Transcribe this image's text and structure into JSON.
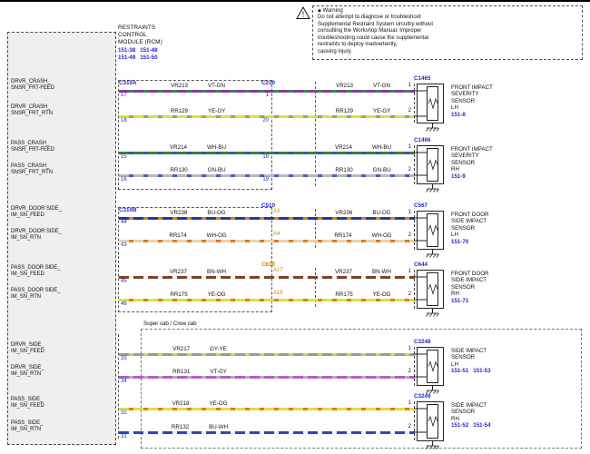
{
  "page": {
    "warning": {
      "marker": "◆",
      "title": "Warning",
      "lines": [
        "Do not attempt to diagnose or troubleshoot",
        "Supplemental Restraint System circuitry without",
        "consulting the Workshop Manual. Improper",
        "troubleshooting could cause the supplemental",
        "restraints to deploy inadvertently,",
        "causing injury."
      ]
    },
    "rcm": {
      "title_lines": [
        "RESTRAINTS",
        "CONTROL",
        "MODULE (RCM)"
      ],
      "refs": [
        "151-38",
        "151-48",
        "151-49",
        "151-50"
      ]
    },
    "supercab_label": "Super cab / Crew cab"
  },
  "colors": {
    "link_blue": "#2424c8",
    "amber": "#c9820e",
    "dash": "#555555"
  },
  "groups": [
    {
      "rcm_connector": "C310A",
      "mid": {
        "label": "C210",
        "label_color": "blue",
        "pin_style": "blue"
      },
      "sensor": {
        "connector": "C1465",
        "name_lines": [
          "FRONT IMPACT",
          "SEVERITY",
          "SENSOR"
        ],
        "side": "LH",
        "refs": [
          "151-8"
        ]
      },
      "rows": [
        {
          "signal_lines": [
            "DRVR_CRASH_",
            "SNSR_FRT-FEED"
          ],
          "rcm_pin": "17",
          "mid_pin": "1",
          "wire_id": "VR213",
          "wire_code": "VT-GN",
          "wire_base": "#8b3a9e",
          "wire_stripe": "#2f8f4f",
          "sensor_pin": "1"
        },
        {
          "signal_lines": [
            "DRVR_CRASH_",
            "SNSR_FRT_RTN"
          ],
          "rcm_pin": "18",
          "mid_pin": "20",
          "wire_id": "RR129",
          "wire_code": "YE-GY",
          "wire_base": "#e3de3a",
          "wire_stripe": "#9a9a9a",
          "sensor_pin": "2"
        }
      ]
    },
    {
      "rcm_connector": "",
      "mid": {
        "label": "",
        "label_color": "blue",
        "pin_style": "blue"
      },
      "sensor": {
        "connector": "C1466",
        "name_lines": [
          "FRONT IMPACT",
          "SEVERITY",
          "SENSOR"
        ],
        "side": "RH",
        "refs": [
          "151-9"
        ]
      },
      "rows": [
        {
          "signal_lines": [
            "PASS_CRASH_",
            "SNSR_FRT-FEED"
          ],
          "rcm_pin": "15",
          "mid_pin": "18",
          "wire_id": "VR214",
          "wire_code": "WH-BU",
          "wire_base": "#417a3f",
          "wire_stripe": "#3056b5",
          "sensor_pin": "1"
        },
        {
          "signal_lines": [
            "PASS_CRASH_",
            "SNSR_FRT_RTN"
          ],
          "rcm_pin": "16",
          "mid_pin": "19",
          "wire_id": "RR130",
          "wire_code": "GN-BU",
          "wire_base": "#b9b9b9",
          "wire_stripe": "#3f62c9",
          "sensor_pin": "2"
        }
      ]
    },
    {
      "rcm_connector": "C310B",
      "mid": {
        "label": "C510",
        "label_color": "blue",
        "pin_style": "amber"
      },
      "sensor": {
        "connector": "C567",
        "name_lines": [
          "FRONT DOOR",
          "SIDE IMPACT",
          "SENSOR"
        ],
        "side": "LH",
        "refs": [
          "151-70"
        ]
      },
      "rows": [
        {
          "signal_lines": [
            "DRVR_DOOR SIDE_",
            "IM_SN_FEED"
          ],
          "rcm_pin": "44",
          "mid_pin": "A3",
          "wire_id": "VR236",
          "wire_code": "BU-OG",
          "wire_base": "#24379e",
          "wire_stripe": "#e07b1a",
          "sensor_pin": "1"
        },
        {
          "signal_lines": [
            "DRVR_DOOR SIDE_",
            "IM_SN_RTN"
          ],
          "rcm_pin": "43",
          "mid_pin": "A4",
          "wire_id": "RR174",
          "wire_code": "WH-OG",
          "wire_base": "#ead0b5",
          "wire_stripe": "#e07b1a",
          "sensor_pin": "2"
        }
      ]
    },
    {
      "rcm_connector": "",
      "mid": {
        "label": "C610",
        "label_color": "amber",
        "pin_style": "amber"
      },
      "sensor": {
        "connector": "C644",
        "name_lines": [
          "FRONT DOOR",
          "SIDE IMPACT",
          "SENSOR"
        ],
        "side": "RH",
        "refs": [
          "151-71"
        ]
      },
      "rows": [
        {
          "signal_lines": [
            "PASS_DOOR SIDE_",
            "IM_SN_FEED"
          ],
          "rcm_pin": "45",
          "mid_pin": "A17",
          "wire_id": "VR237",
          "wire_code": "BN-WH",
          "wire_base": "#80402b",
          "wire_stripe": "#f2f2f2",
          "sensor_pin": "1"
        },
        {
          "signal_lines": [
            "PASS_DOOR SIDE_",
            "IM_SN_RTN"
          ],
          "rcm_pin": "46",
          "mid_pin": "A18",
          "wire_id": "RR175",
          "wire_code": "YE-OG",
          "wire_base": "#e3de3a",
          "wire_stripe": "#e07b1a",
          "sensor_pin": "2"
        }
      ]
    },
    {
      "rcm_connector": "",
      "mid": null,
      "sensor": {
        "connector": "C3248",
        "name_lines": [
          "SIDE IMPACT",
          "SENSOR"
        ],
        "side": "LH",
        "refs": [
          "151-51",
          "151-53"
        ]
      },
      "rows": [
        {
          "signal_lines": [
            "DRVR_SIDE_",
            "IM_SN_FEED"
          ],
          "rcm_pin": "33",
          "mid_pin": "",
          "wire_id": "VR217",
          "wire_code": "GY-YE",
          "wire_base": "#9c9c8e",
          "wire_stripe": "#d8d33a",
          "sensor_pin": "1"
        },
        {
          "signal_lines": [
            "DRVR_SIDE_",
            "IM_SN_RTN"
          ],
          "rcm_pin": "34",
          "mid_pin": "",
          "wire_id": "RR131",
          "wire_code": "VT-GY",
          "wire_base": "#b45ec4",
          "wire_stripe": "#b0b0b0",
          "sensor_pin": "2"
        }
      ]
    },
    {
      "rcm_connector": "",
      "mid": null,
      "sensor": {
        "connector": "C3249",
        "name_lines": [
          "SIDE IMPACT",
          "SENSOR"
        ],
        "side": "RH",
        "refs": [
          "151-52",
          "151-54"
        ]
      },
      "rows": [
        {
          "signal_lines": [
            "PASS_SIDE_",
            "IM_SN_FEED"
          ],
          "rcm_pin": "32",
          "mid_pin": "",
          "wire_id": "VR218",
          "wire_code": "YE-OG",
          "wire_base": "#e3de3a",
          "wire_stripe": "#e07b1a",
          "sensor_pin": "1"
        },
        {
          "signal_lines": [
            "PASS_SIDE_",
            "IM_SN_RTN"
          ],
          "rcm_pin": "31",
          "mid_pin": "",
          "wire_id": "RR132",
          "wire_code": "BU-WH",
          "wire_base": "#2b46c0",
          "wire_stripe": "#f2f2f2",
          "sensor_pin": "2"
        }
      ]
    }
  ]
}
